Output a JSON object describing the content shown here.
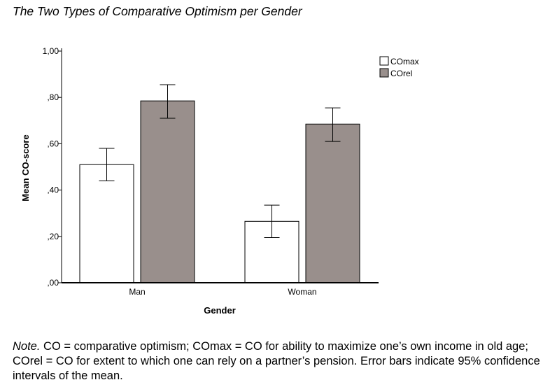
{
  "figure": {
    "title": "The Two Types of Comparative Optimism per Gender",
    "note_label": "Note.",
    "note_text": " CO = comparative optimism; COmax = CO for ability to maximize one’s own income in old age; COrel = CO for extent to which one can rely on a partner’s pension. Error bars indicate 95% confidence intervals of the mean."
  },
  "chart_data": {
    "type": "bar",
    "categories": [
      "Man",
      "Woman"
    ],
    "series": [
      {
        "name": "COmax",
        "color": "#ffffff",
        "values": [
          0.51,
          0.265
        ],
        "ci_lower": [
          0.44,
          0.195
        ],
        "ci_upper": [
          0.58,
          0.335
        ]
      },
      {
        "name": "COrel",
        "color": "#998f8c",
        "values": [
          0.785,
          0.685
        ],
        "ci_lower": [
          0.71,
          0.61
        ],
        "ci_upper": [
          0.855,
          0.755
        ]
      }
    ],
    "xlabel": "Gender",
    "ylabel": "Mean CO-score",
    "ylim": [
      0,
      1.0
    ],
    "yticks": [
      0,
      0.2,
      0.4,
      0.6,
      0.8,
      1.0
    ],
    "ytick_labels": [
      ",00",
      ",20",
      ",40",
      ",60",
      ",80",
      "1,00"
    ],
    "grid": false,
    "legend_position": "top-right",
    "error_bars": "95% CI"
  }
}
